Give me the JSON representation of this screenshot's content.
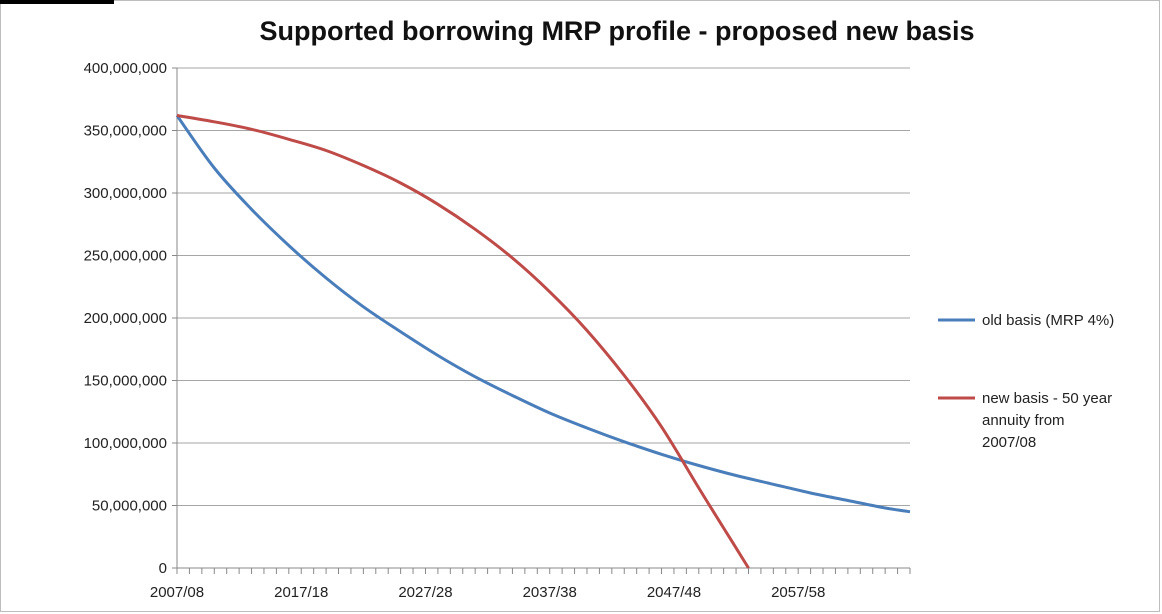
{
  "chart_data": {
    "type": "line",
    "title": "Supported borrowing MRP profile - proposed new basis",
    "xlabel": "",
    "ylabel": "",
    "ylim": [
      0,
      400000000
    ],
    "y_ticks": [
      "0",
      "50,000,000",
      "100,000,000",
      "150,000,000",
      "200,000,000",
      "250,000,000",
      "300,000,000",
      "350,000,000",
      "400,000,000"
    ],
    "x_tick_labels": [
      "2007/08",
      "2017/18",
      "2027/28",
      "2037/38",
      "2047/48",
      "2057/58"
    ],
    "x_start_year": 2007,
    "x_end_year": 2066,
    "grid": true,
    "legend_position": "right",
    "series": [
      {
        "name": "old basis (MRP 4%)",
        "color": "#4a7ebb",
        "points": [
          [
            2007,
            362000000
          ],
          [
            2010,
            320000000
          ],
          [
            2013,
            287000000
          ],
          [
            2016,
            258000000
          ],
          [
            2019,
            232000000
          ],
          [
            2022,
            209000000
          ],
          [
            2025,
            189000000
          ],
          [
            2028,
            170000000
          ],
          [
            2031,
            153000000
          ],
          [
            2034,
            138000000
          ],
          [
            2037,
            124000000
          ],
          [
            2040,
            112000000
          ],
          [
            2043,
            101000000
          ],
          [
            2046,
            91000000
          ],
          [
            2049,
            82000000
          ],
          [
            2052,
            74000000
          ],
          [
            2055,
            67000000
          ],
          [
            2058,
            60000000
          ],
          [
            2061,
            54000000
          ],
          [
            2064,
            48000000
          ],
          [
            2066,
            45000000
          ]
        ]
      },
      {
        "name": "new basis - 50 year annuity from 2007/08",
        "color": "#be4b48",
        "points": [
          [
            2007,
            362000000
          ],
          [
            2010,
            357000000
          ],
          [
            2013,
            351000000
          ],
          [
            2016,
            343000000
          ],
          [
            2019,
            334000000
          ],
          [
            2022,
            322000000
          ],
          [
            2025,
            308000000
          ],
          [
            2028,
            291000000
          ],
          [
            2031,
            271000000
          ],
          [
            2034,
            248000000
          ],
          [
            2037,
            221000000
          ],
          [
            2040,
            190000000
          ],
          [
            2043,
            154000000
          ],
          [
            2046,
            113000000
          ],
          [
            2049,
            64000000
          ],
          [
            2051,
            32000000
          ],
          [
            2053,
            0
          ]
        ]
      }
    ]
  }
}
